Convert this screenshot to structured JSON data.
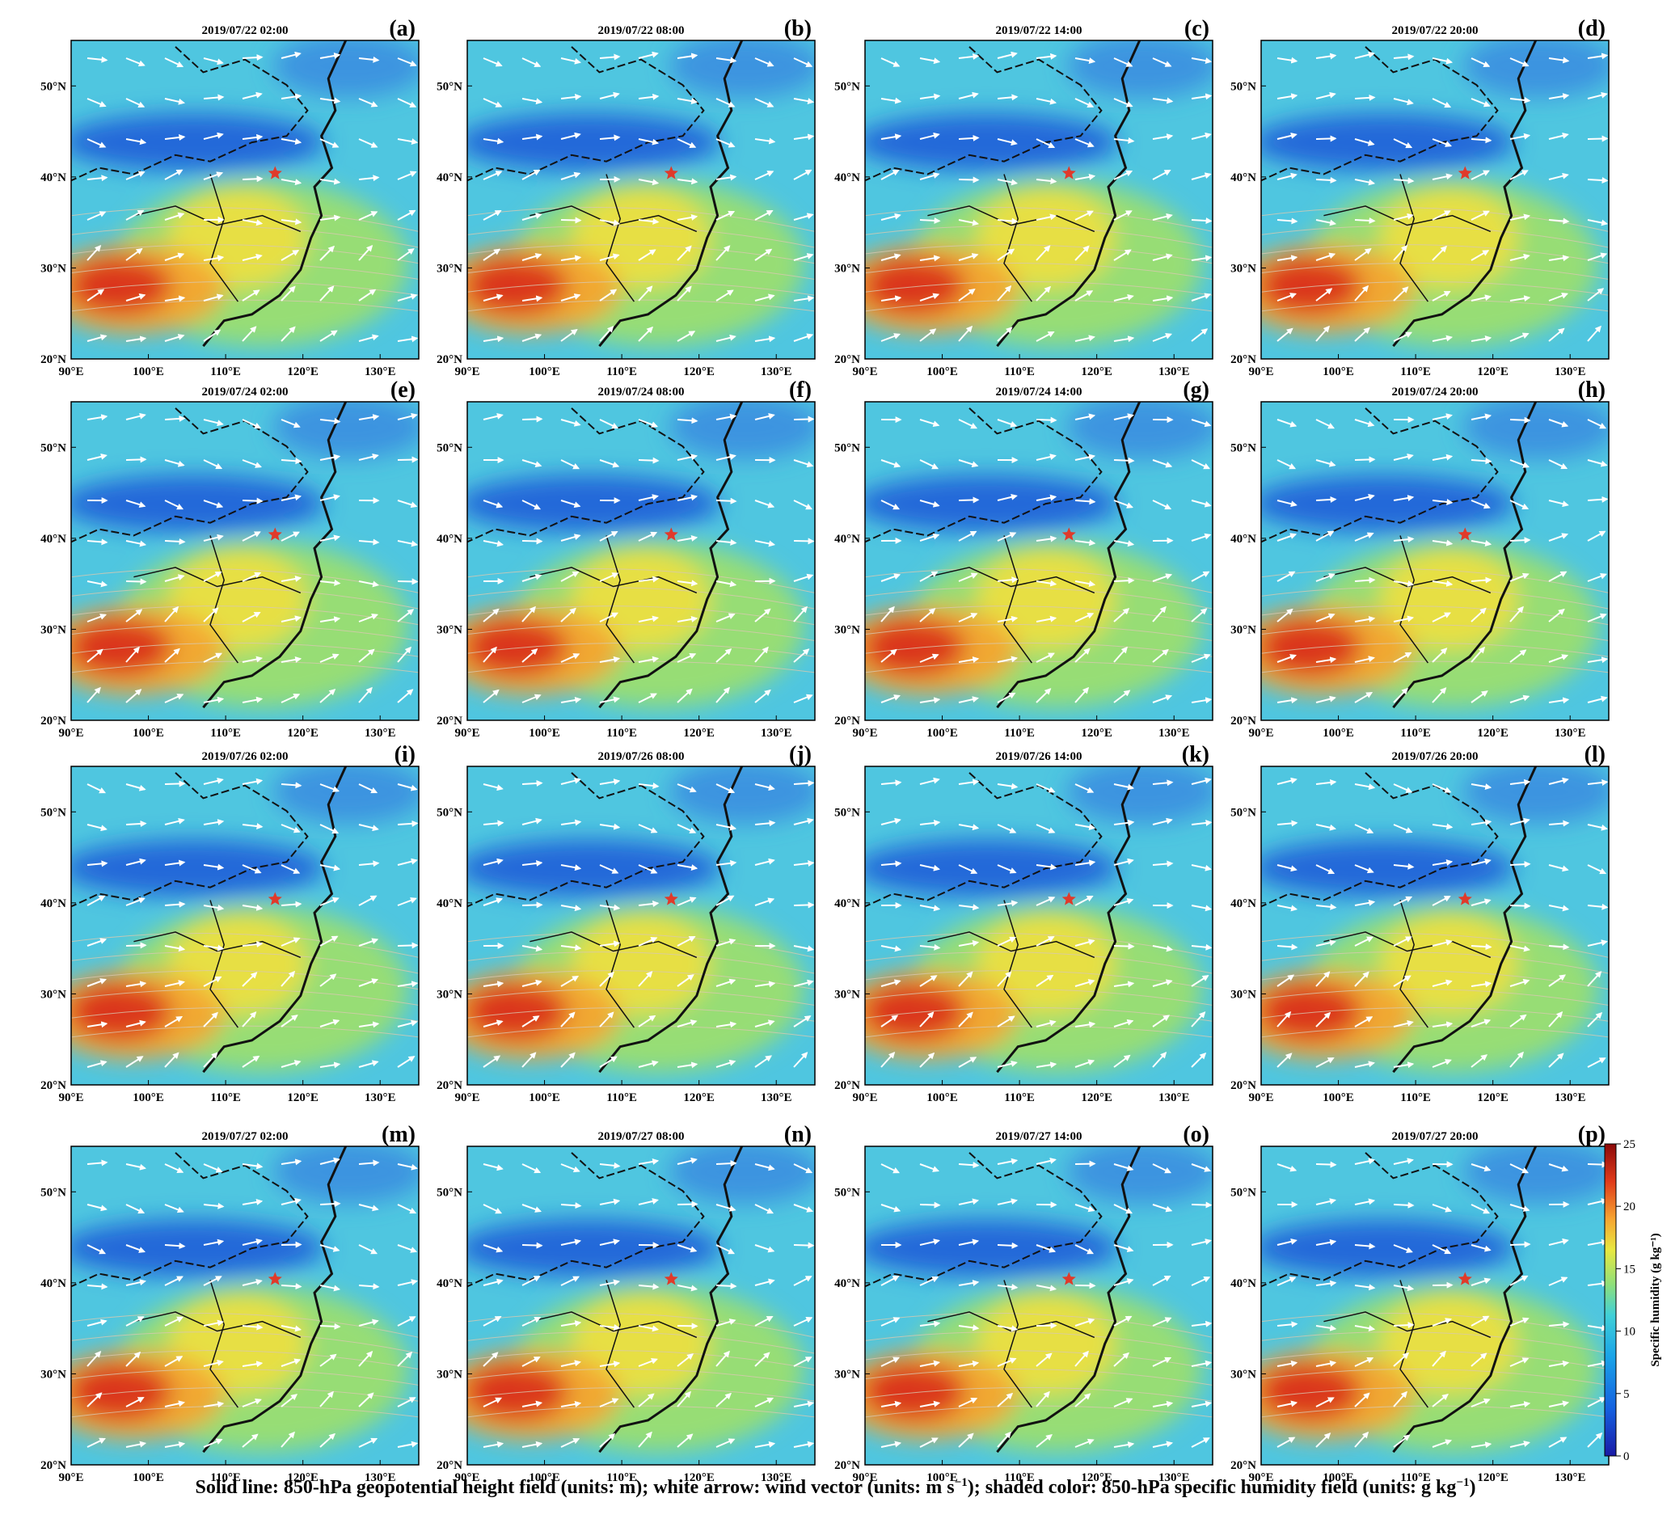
{
  "panels": [
    {
      "label": "(a)",
      "time": "2019/07/22 02:00"
    },
    {
      "label": "(b)",
      "time": "2019/07/22 08:00"
    },
    {
      "label": "(c)",
      "time": "2019/07/22 14:00"
    },
    {
      "label": "(d)",
      "time": "2019/07/22 20:00"
    },
    {
      "label": "(e)",
      "time": "2019/07/24 02:00"
    },
    {
      "label": "(f)",
      "time": "2019/07/24 08:00"
    },
    {
      "label": "(g)",
      "time": "2019/07/24 14:00"
    },
    {
      "label": "(h)",
      "time": "2019/07/24 20:00"
    },
    {
      "label": "(i)",
      "time": "2019/07/26 02:00"
    },
    {
      "label": "(j)",
      "time": "2019/07/26 08:00"
    },
    {
      "label": "(k)",
      "time": "2019/07/26 14:00"
    },
    {
      "label": "(l)",
      "time": "2019/07/26 20:00"
    },
    {
      "label": "(m)",
      "time": "2019/07/27 02:00"
    },
    {
      "label": "(n)",
      "time": "2019/07/27 08:00"
    },
    {
      "label": "(o)",
      "time": "2019/07/27 14:00"
    },
    {
      "label": "(p)",
      "time": "2019/07/27 20:00"
    }
  ],
  "lat_ticks": [
    "20°N",
    "30°N",
    "40°N",
    "50°N"
  ],
  "lon_ticks": [
    "90°E",
    "100°E",
    "110°E",
    "120°E",
    "130°E"
  ],
  "map_extent": {
    "lon": [
      90,
      135
    ],
    "lat": [
      20,
      55
    ]
  },
  "marker": {
    "lon": 116.4,
    "lat": 40.4,
    "color": "#e03a2a",
    "shape": "star"
  },
  "colorbar": {
    "label": "Specific humidity (g kg⁻¹)",
    "min": 0,
    "max": 25,
    "ticks": [
      "0",
      "5",
      "10",
      "15",
      "20",
      "25"
    ],
    "colors": [
      "#1a1aa6",
      "#1560e0",
      "#1aa4e8",
      "#40d0d8",
      "#8fe07a",
      "#e8e840",
      "#f6a430",
      "#e03a1a",
      "#8c0a0a"
    ]
  },
  "caption": {
    "part1": "Solid line: 850-hPa geopotential height field (units: m); white arrow: wind vector (units:  m s",
    "exp1": "−1",
    "part2": "); shaded color: 850-hPa specific humidity field (units:  g kg",
    "exp2": "−1",
    "part3": ")"
  }
}
